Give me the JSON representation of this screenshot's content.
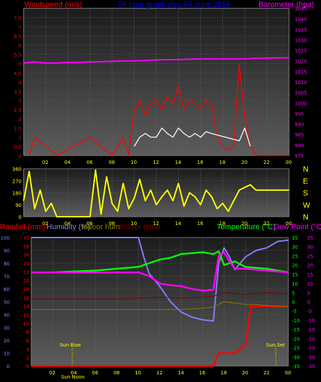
{
  "colors": {
    "wind": "#ff0000",
    "gust": "#ffffff",
    "baro": "#ff00ff",
    "dir": "#ffff00",
    "rain": "#ff0000",
    "hum": "#8080ff",
    "inhum": "#808000",
    "intemp": "#800000",
    "temp": "#00ff00",
    "dew": "#ff00ff",
    "text_title": "#0000ff",
    "text_wind": "#ff0000",
    "text_baro": "#ff00ff"
  },
  "chart_data": [
    {
      "type": "line",
      "title": "24 hour graph day, 04 June 2014",
      "left_label": "Windspeed (m/s)",
      "right_label": "Barometer (hpa)",
      "x_ticks": [
        "02",
        "04",
        "06",
        "08",
        "10",
        "12",
        "14",
        "16",
        "18",
        "20",
        "22",
        "00"
      ],
      "y_left_ticks": [
        "0",
        "0.5",
        "1",
        "1.5",
        "2",
        "2.5",
        "3",
        "3.5",
        "4",
        "4.5",
        "5",
        "5.5",
        "6",
        "6.5",
        "7",
        "7.5"
      ],
      "y_right_ticks": [
        "975",
        "980",
        "985",
        "990",
        "995",
        "1000",
        "1005",
        "1010",
        "1015",
        "1020",
        "1025",
        "1030",
        "1035",
        "1040",
        "1045"
      ],
      "ylim_left": [
        0,
        8
      ],
      "ylim_right": [
        975,
        1045
      ],
      "series": [
        {
          "name": "Windspeed",
          "x": [
            0.5,
            1,
            3,
            6,
            8,
            9,
            9.5,
            10,
            10.5,
            11,
            11.5,
            12,
            12.5,
            13,
            13.5,
            14,
            14.5,
            15,
            15.5,
            16,
            16.5,
            17,
            17.5,
            18,
            18.5,
            19,
            19.5,
            20,
            20.5,
            21,
            24
          ],
          "values": [
            0,
            1,
            0,
            1,
            0,
            1,
            0,
            2.5,
            3,
            2.2,
            2.8,
            3,
            2.5,
            3.2,
            2.8,
            3.8,
            2.5,
            3,
            2.8,
            2.5,
            3,
            2.8,
            1,
            0.5,
            0.3,
            0.5,
            5,
            2,
            0.5,
            0,
            0
          ]
        },
        {
          "name": "Gust",
          "x": [
            10,
            10.5,
            11,
            11.5,
            12,
            12.5,
            13,
            13.5,
            14,
            14.5,
            15,
            15.5,
            16,
            16.5,
            17,
            19.5,
            20,
            20.5
          ],
          "values": [
            0.5,
            1,
            1.2,
            1,
            1,
            1.5,
            1.2,
            1,
            1.5,
            1.2,
            1,
            1.2,
            1,
            1.3,
            1.2,
            0.8,
            1.5,
            0.5
          ]
        },
        {
          "name": "Barometer",
          "x": [
            0,
            1,
            2,
            3,
            4,
            5,
            6,
            7,
            8,
            9,
            10,
            11,
            12,
            13,
            14,
            15,
            16,
            17,
            18,
            19,
            20,
            21,
            22,
            23,
            24
          ],
          "values": [
            1019,
            1019.5,
            1019,
            1019,
            1019.3,
            1019.3,
            1019.5,
            1019.6,
            1019.8,
            1020,
            1020,
            1020.2,
            1020.5,
            1020.6,
            1020.6,
            1020.8,
            1021,
            1021,
            1021,
            1021,
            1021,
            1021.3,
            1021.3,
            1021.5,
            1021.5
          ]
        }
      ]
    },
    {
      "type": "line",
      "right_labels": [
        "N",
        "W",
        "S",
        "E",
        "N"
      ],
      "y_ticks": [
        "0",
        "90",
        "180",
        "270",
        "360"
      ],
      "ylim": [
        0,
        360
      ],
      "x_ticks": [
        "02",
        "04",
        "06",
        "08",
        "10",
        "12",
        "14",
        "16",
        "18",
        "20",
        "22",
        "00"
      ],
      "series": [
        {
          "name": "Wind direction",
          "x": [
            0,
            0.5,
            1,
            1.5,
            2,
            2.5,
            3,
            4,
            5,
            6,
            6.5,
            7,
            7.5,
            8,
            8.5,
            9,
            9.5,
            10,
            10.5,
            11,
            11.5,
            12,
            12.5,
            13,
            13.5,
            14,
            14.5,
            15,
            15.5,
            16,
            16.5,
            17,
            17.5,
            18,
            18.5,
            19,
            19.5,
            20,
            20.5,
            21,
            24
          ],
          "values": [
            120,
            340,
            60,
            200,
            40,
            100,
            0,
            0,
            0,
            0,
            350,
            20,
            300,
            100,
            40,
            250,
            60,
            140,
            280,
            120,
            200,
            90,
            150,
            200,
            120,
            250,
            80,
            180,
            150,
            90,
            200,
            150,
            60,
            100,
            40,
            120,
            200,
            220,
            240,
            200,
            200
          ]
        }
      ]
    },
    {
      "type": "line",
      "title_left_labels": [
        "Rainfall (mm)",
        "Humidity (%)",
        "Indoor hum",
        "Indoor temp"
      ],
      "title_right_labels": [
        "Temperature (°C)",
        "Dew Point (°C)"
      ],
      "y_left_ticks": [
        "0",
        "10",
        "20",
        "30",
        "40",
        "50",
        "60",
        "70",
        "80",
        "90",
        "100"
      ],
      "y_left2_ticks": [
        "0",
        "2",
        "4",
        "6",
        "8",
        "10",
        "12",
        "14",
        "16",
        "18",
        "20",
        "22",
        "24",
        "26",
        "28",
        "30"
      ],
      "y_right_ticks": [
        "-35",
        "-30",
        "-25",
        "-20",
        "-15",
        "-10",
        "-5",
        "0",
        "5",
        "10",
        "15",
        "20",
        "25",
        "30",
        "35"
      ],
      "ylim_hum": [
        0,
        100
      ],
      "ylim_temp": [
        -35,
        35
      ],
      "x_ticks": [
        "02",
        "04",
        "06",
        "08",
        "10",
        "12",
        "14",
        "16",
        "18",
        "20",
        "22",
        "00"
      ],
      "annotations": [
        "Sun Rise",
        "Sun Set",
        "Sun Noon"
      ],
      "series": [
        {
          "name": "Rainfall",
          "x": [
            0,
            17,
            17.5,
            18,
            19,
            20,
            20.5,
            21,
            24
          ],
          "values": [
            0,
            0,
            3,
            3,
            3,
            5,
            14,
            14,
            14
          ]
        },
        {
          "name": "Humidity",
          "x": [
            0,
            10,
            10.5,
            11,
            12,
            13,
            14,
            15,
            16,
            17,
            17.5,
            18,
            18.5,
            19,
            20,
            21,
            22,
            23,
            24
          ],
          "values": [
            100,
            100,
            85,
            72,
            62,
            50,
            42,
            38,
            36,
            35,
            80,
            92,
            85,
            75,
            85,
            90,
            92,
            97,
            98
          ]
        },
        {
          "name": "Indoor hum",
          "x": [
            0,
            14,
            16,
            17,
            18,
            19,
            20,
            21,
            22,
            24
          ],
          "values": [
            44,
            44,
            45,
            46,
            50,
            49,
            48,
            48,
            47,
            46
          ]
        },
        {
          "name": "Indoor temp",
          "x": [
            0,
            8,
            10,
            12,
            14,
            16,
            17,
            18,
            20,
            22,
            24
          ],
          "values": [
            1.5,
            1.5,
            2,
            2.5,
            2,
            2.5,
            3,
            5,
            4,
            5,
            4.5
          ]
        },
        {
          "name": "Temperature",
          "x": [
            0,
            2,
            4,
            6,
            8,
            10,
            11,
            12,
            13,
            14,
            15,
            16,
            17,
            17.5,
            18,
            19,
            20,
            21,
            22,
            23,
            24
          ],
          "values": [
            16,
            16,
            16.5,
            17,
            18,
            19,
            21,
            23,
            24,
            26,
            26.5,
            27,
            26,
            27.5,
            20,
            22,
            19,
            18.5,
            18,
            17,
            16
          ]
        },
        {
          "name": "Dew Point",
          "x": [
            0,
            10,
            10.5,
            11,
            12,
            13,
            14,
            15,
            16,
            17,
            17.5,
            18,
            18.5,
            19,
            20,
            21,
            22,
            24
          ],
          "values": [
            16,
            16,
            15,
            14,
            10,
            9,
            8.5,
            7,
            6,
            6.5,
            25,
            27,
            22,
            18,
            18,
            17.5,
            17,
            16
          ]
        }
      ]
    }
  ]
}
